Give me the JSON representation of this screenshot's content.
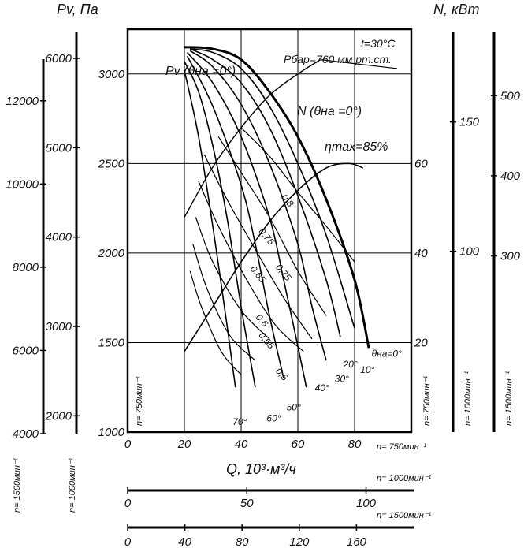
{
  "chart_data": {
    "type": "line",
    "title": "",
    "notes": [
      "t=30°C",
      "Рбар=760 мм рт.ст."
    ],
    "ylabel_left": "Pv, Па",
    "ylabel_right": "N, кВт",
    "xlabel": "Q, 10³·м³/ч",
    "x_range": [
      0,
      100
    ],
    "pv_range": [
      1000,
      3250
    ],
    "pv_main_ticks": [
      1000,
      1500,
      2000,
      2500,
      3000
    ],
    "n_main_ticks": [
      20,
      40,
      60
    ],
    "rpm_labels": {
      "n750": "n= 750мин⁻¹",
      "n1000": "n= 1000мин⁻¹",
      "n1500": "n= 1500мин⁻¹"
    },
    "x_axes": [
      {
        "name": "n750",
        "label": "n= 750мин⁻¹",
        "ticks": [
          0,
          20,
          40,
          60,
          80
        ]
      },
      {
        "name": "n1000",
        "label": "n= 1000мин⁻¹",
        "ticks": [
          0,
          50,
          100
        ]
      },
      {
        "name": "n1500",
        "label": "n= 1500мин⁻¹",
        "ticks": [
          0,
          40,
          80,
          120,
          160
        ]
      }
    ],
    "left_axes": [
      {
        "name": "n1500",
        "label": "n= 1500мин⁻¹",
        "ticks": [
          4000,
          6000,
          8000,
          10000,
          12000
        ]
      },
      {
        "name": "n1000",
        "label": "n= 1000мин⁻¹",
        "ticks": [
          2000,
          3000,
          4000,
          5000,
          6000
        ]
      }
    ],
    "right_axes": [
      {
        "name": "n1000",
        "label": "n= 1000мин⁻¹",
        "ticks": [
          100,
          150
        ]
      },
      {
        "name": "n1500",
        "label": "n= 1500мин⁻¹",
        "ticks": [
          300,
          400,
          500
        ]
      }
    ],
    "pv_curves": [
      {
        "name": "θна=0°",
        "points": [
          [
            20,
            3150
          ],
          [
            30,
            3140
          ],
          [
            40,
            3080
          ],
          [
            50,
            2900
          ],
          [
            60,
            2650
          ],
          [
            70,
            2300
          ],
          [
            80,
            1850
          ],
          [
            85,
            1470
          ]
        ]
      },
      {
        "name": "10°",
        "points": [
          [
            22,
            3140
          ],
          [
            30,
            3120
          ],
          [
            40,
            3030
          ],
          [
            50,
            2820
          ],
          [
            60,
            2500
          ],
          [
            70,
            2100
          ],
          [
            80,
            1580
          ]
        ]
      },
      {
        "name": "20°",
        "points": [
          [
            22,
            3140
          ],
          [
            30,
            3080
          ],
          [
            40,
            2950
          ],
          [
            50,
            2700
          ],
          [
            60,
            2320
          ],
          [
            70,
            1850
          ],
          [
            75,
            1530
          ]
        ]
      },
      {
        "name": "30°",
        "points": [
          [
            22,
            3130
          ],
          [
            30,
            3040
          ],
          [
            40,
            2830
          ],
          [
            50,
            2500
          ],
          [
            60,
            2050
          ],
          [
            65,
            1700
          ],
          [
            70,
            1400
          ]
        ]
      },
      {
        "name": "40°",
        "points": [
          [
            21,
            3120
          ],
          [
            30,
            2950
          ],
          [
            40,
            2650
          ],
          [
            50,
            2200
          ],
          [
            55,
            1850
          ],
          [
            60,
            1480
          ],
          [
            63,
            1250
          ]
        ]
      },
      {
        "name": "50°",
        "points": [
          [
            21,
            3100
          ],
          [
            30,
            2820
          ],
          [
            40,
            2380
          ],
          [
            45,
            2050
          ],
          [
            50,
            1650
          ],
          [
            55,
            1300
          ]
        ]
      },
      {
        "name": "60°",
        "points": [
          [
            20,
            3070
          ],
          [
            25,
            2900
          ],
          [
            30,
            2600
          ],
          [
            35,
            2200
          ],
          [
            40,
            1700
          ],
          [
            45,
            1250
          ]
        ]
      },
      {
        "name": "70°",
        "points": [
          [
            20,
            3020
          ],
          [
            25,
            2650
          ],
          [
            30,
            2150
          ],
          [
            35,
            1600
          ],
          [
            38,
            1250
          ]
        ]
      }
    ],
    "n_curve": {
      "name": "N (θна =0°)",
      "points": [
        [
          20,
          18
        ],
        [
          30,
          28
        ],
        [
          40,
          38
        ],
        [
          50,
          47
        ],
        [
          60,
          54
        ],
        [
          70,
          59
        ],
        [
          78,
          60
        ],
        [
          83,
          59
        ]
      ]
    },
    "efficiency_labels": [
      "0,8",
      "0,75",
      "0,75",
      "0,65",
      "0,6",
      "0,55",
      "0,5"
    ],
    "eta_label": "ηmax=85%",
    "pv_curve_label": "Pv (θна =0°)",
    "angle_labels": [
      "θна=0°",
      "10°",
      "20°",
      "30°",
      "40°",
      "50°",
      "60°",
      "70°"
    ]
  }
}
